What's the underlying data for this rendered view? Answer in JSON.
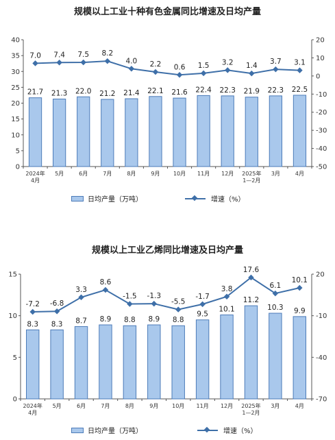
{
  "chart_data": [
    {
      "type": "bar+line",
      "title": "规模以上工业十种有色金属同比增速及日均产量",
      "categories": [
        "2024年\n4月",
        "5月",
        "6月",
        "7月",
        "8月",
        "9月",
        "10月",
        "11月",
        "12月",
        "2025年\n1—2月",
        "3月",
        "4月"
      ],
      "series": [
        {
          "name": "日均产量（万吨）",
          "kind": "bar",
          "axis": "left",
          "values": [
            21.7,
            21.3,
            22.0,
            21.2,
            21.4,
            22.1,
            21.6,
            22.4,
            22.3,
            21.9,
            22.3,
            22.5
          ],
          "labels": [
            "21.7",
            "21.3",
            "22.0",
            "21.2",
            "21.4",
            "22.1",
            "21.6",
            "22.4",
            "22.3",
            "21.9",
            "22.3",
            "22.5"
          ]
        },
        {
          "name": "增速（%）",
          "kind": "line",
          "axis": "right",
          "values": [
            7.0,
            7.4,
            7.5,
            8.2,
            4.0,
            2.2,
            0.6,
            1.5,
            3.2,
            1.4,
            3.7,
            3.1
          ],
          "labels": [
            "7.0",
            "7.4",
            "7.5",
            "8.2",
            "4.0",
            "2.2",
            "0.6",
            "1.5",
            "3.2",
            "1.4",
            "3.7",
            "3.1"
          ]
        }
      ],
      "ylim_left": [
        0,
        40
      ],
      "yticks_left": [
        0,
        5,
        10,
        15,
        20,
        25,
        30,
        35,
        40
      ],
      "ylim_right": [
        -50,
        20
      ],
      "yticks_right": [
        -50,
        -40,
        -30,
        -20,
        -10,
        0,
        10,
        20
      ],
      "grid": false,
      "legend": "bottom",
      "colors": {
        "bar_fill": "#a9c8ec",
        "bar_stroke": "#4c7bb8",
        "line": "#3e6fa8"
      }
    },
    {
      "type": "bar+line",
      "title": "规模以上工业乙烯同比增速及日均产量",
      "categories": [
        "2024年\n4月",
        "5月",
        "6月",
        "7月",
        "8月",
        "9月",
        "10月",
        "11月",
        "12月",
        "2025年\n1—2月",
        "3月",
        "4月"
      ],
      "series": [
        {
          "name": "日均产量（万吨）",
          "kind": "bar",
          "axis": "left",
          "values": [
            8.3,
            8.3,
            8.7,
            8.9,
            8.8,
            8.9,
            8.8,
            9.5,
            10.1,
            11.2,
            10.3,
            9.9
          ],
          "labels": [
            "8.3",
            "8.3",
            "8.7",
            "8.9",
            "8.8",
            "8.9",
            "8.8",
            "9.5",
            "10.1",
            "11.2",
            "10.3",
            "9.9"
          ]
        },
        {
          "name": "增速（%）",
          "kind": "line",
          "axis": "right",
          "values": [
            -7.2,
            -6.8,
            3.3,
            8.6,
            -1.5,
            -1.3,
            -5.5,
            -1.7,
            3.8,
            17.6,
            6.1,
            10.1
          ],
          "labels": [
            "-7.2",
            "-6.8",
            "3.3",
            "8.6",
            "-1.5",
            "-1.3",
            "-5.5",
            "-1.7",
            "3.8",
            "17.6",
            "6.1",
            "10.1"
          ]
        }
      ],
      "ylim_left": [
        0,
        15
      ],
      "yticks_left": [
        0,
        5,
        10,
        15
      ],
      "ylim_right": [
        -70,
        20
      ],
      "yticks_right": [
        -70,
        -40,
        -10,
        20
      ],
      "grid": false,
      "legend": "bottom",
      "colors": {
        "bar_fill": "#a9c8ec",
        "bar_stroke": "#4c7bb8",
        "line": "#3e6fa8"
      }
    }
  ],
  "legend": {
    "bar_label": "日均产量（万吨）",
    "line_label": "增速（%）"
  }
}
